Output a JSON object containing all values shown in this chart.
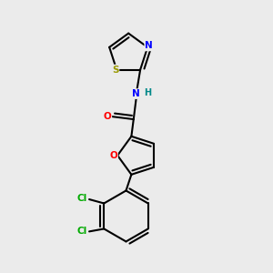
{
  "background_color": "#ebebeb",
  "atom_colors": {
    "C": "#000000",
    "N": "#0000ff",
    "O": "#ff0000",
    "S": "#999900",
    "Cl": "#00aa00",
    "H": "#008888"
  },
  "figsize": [
    3.0,
    3.0
  ],
  "dpi": 100
}
